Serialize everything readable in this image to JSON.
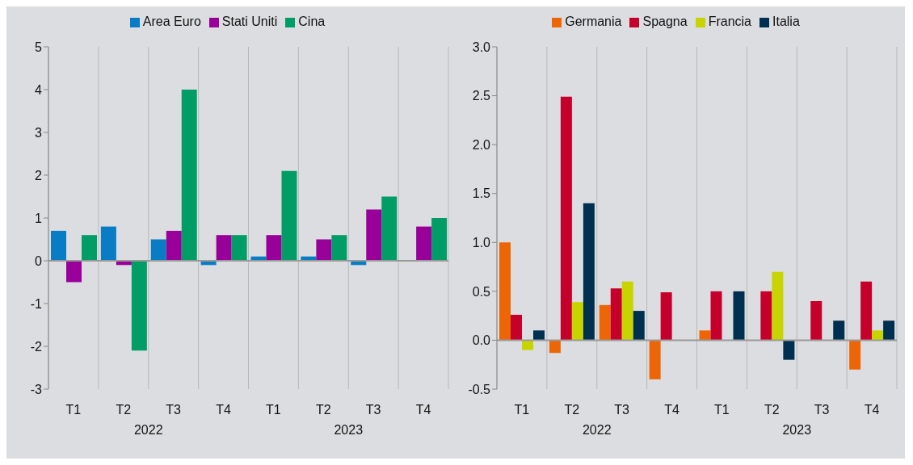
{
  "chart_data": [
    {
      "type": "bar",
      "categories": [
        "T1",
        "T2",
        "T3",
        "T4",
        "T1",
        "T2",
        "T3",
        "T4"
      ],
      "annotations": [
        "2022",
        "2023"
      ],
      "series": [
        {
          "name": "Area Euro",
          "color": "#0a7cc4",
          "values": [
            0.7,
            0.8,
            0.5,
            -0.1,
            0.1,
            0.1,
            -0.1,
            0
          ]
        },
        {
          "name": "Stati Uniti",
          "color": "#990099",
          "values": [
            -0.5,
            -0.1,
            0.7,
            0.6,
            0.6,
            0.5,
            1.2,
            0.8
          ]
        },
        {
          "name": "Cina",
          "color": "#009e66",
          "values": [
            0.6,
            -2.1,
            4.0,
            0.6,
            2.1,
            0.6,
            1.5,
            1.0
          ]
        }
      ],
      "ylim": [
        -3,
        5
      ],
      "yticks": [
        -3,
        -2,
        -1,
        0,
        1,
        2,
        3,
        4,
        5
      ],
      "grid": "x",
      "legend": "top"
    },
    {
      "type": "bar",
      "categories": [
        "T1",
        "T2",
        "T3",
        "T4",
        "T1",
        "T2",
        "T3",
        "T4"
      ],
      "annotations": [
        "2022",
        "2023"
      ],
      "series": [
        {
          "name": "Germania",
          "color": "#ec6608",
          "values": [
            1.0,
            -0.13,
            0.36,
            -0.4,
            0.1,
            0,
            0,
            -0.3
          ]
        },
        {
          "name": "Spagna",
          "color": "#c4002b",
          "values": [
            0.26,
            2.49,
            0.53,
            0.49,
            0.5,
            0.5,
            0.4,
            0.6
          ]
        },
        {
          "name": "Francia",
          "color": "#c8d400",
          "values": [
            -0.1,
            0.39,
            0.6,
            0,
            0,
            0.7,
            0,
            0.1
          ]
        },
        {
          "name": "Italia",
          "color": "#00304f",
          "values": [
            0.1,
            1.4,
            0.3,
            0,
            0.5,
            -0.2,
            0.2,
            0.2
          ]
        }
      ],
      "ylim": [
        -0.5,
        3.0
      ],
      "yticks": [
        {
          "value": -0.5,
          "label": "-0.5"
        },
        {
          "value": 0,
          "label": "0.0"
        },
        {
          "value": 0.5,
          "label": "0.5"
        },
        {
          "value": 1,
          "label": "1.0"
        },
        {
          "value": 1.5,
          "label": "1.5"
        },
        {
          "value": 2,
          "label": "2.0"
        },
        {
          "value": 2.5,
          "label": "2.5"
        },
        {
          "value": 3,
          "label": "3.0"
        }
      ],
      "grid": "x",
      "legend": "top"
    }
  ]
}
